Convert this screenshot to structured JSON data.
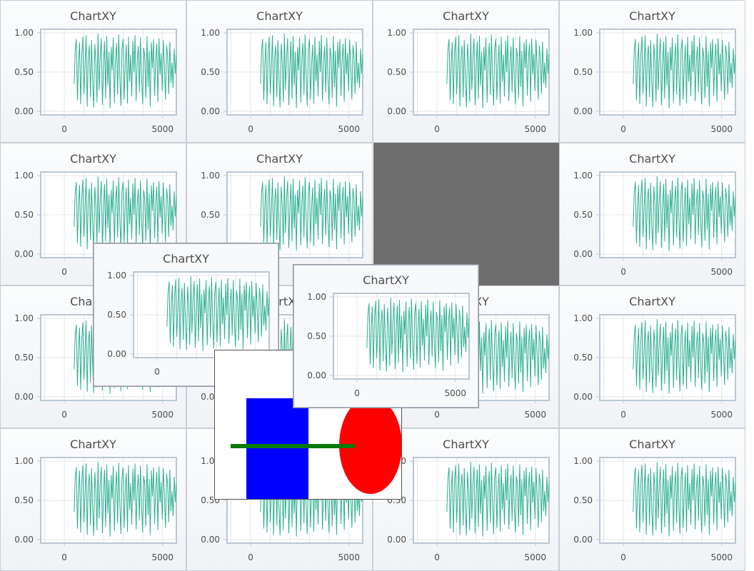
{
  "chart_title": "ChartXY",
  "colors": {
    "series": "#2db08f",
    "frame": "#b9c7d4",
    "panel_bg": "#f3f6f8",
    "gray_area": "#6e6e6e",
    "rect_fill": "#0000ff",
    "ellipse_fill": "#ff0000",
    "line_stroke": "#0a7a0a"
  },
  "chart_data": {
    "type": "line",
    "title": "ChartXY",
    "xlabel": "",
    "ylabel": "",
    "ylim": [
      0,
      1
    ],
    "xlim": [
      -1200,
      5700
    ],
    "y_ticks": [
      "1.00",
      "0.50",
      "0.00"
    ],
    "y_tick_values": [
      1.0,
      0.5,
      0.0
    ],
    "x_ticks": [
      "0",
      "5000"
    ],
    "x_tick_values": [
      0,
      5000
    ],
    "grid": true,
    "series": [
      {
        "x_range": [
          500,
          5700
        ],
        "values": [
          0.35,
          0.78,
          0.92,
          0.14,
          0.61,
          0.88,
          0.09,
          0.73,
          0.95,
          0.22,
          0.55,
          0.97,
          0.06,
          0.68,
          0.84,
          0.18,
          0.91,
          0.41,
          0.05,
          0.86,
          0.63,
          0.12,
          0.99,
          0.27,
          0.71,
          0.93,
          0.08,
          0.58,
          0.89,
          0.16,
          0.96,
          0.33,
          0.76,
          0.04,
          0.82,
          0.52,
          0.94,
          0.11,
          0.66,
          0.87,
          0.21,
          0.98,
          0.45,
          0.07,
          0.79,
          0.92,
          0.15,
          0.6,
          0.85,
          0.1,
          0.95,
          0.38,
          0.72,
          0.19,
          0.9,
          0.5,
          0.97,
          0.13,
          0.64,
          0.83,
          0.24,
          0.94,
          0.42,
          0.09,
          0.81,
          0.69,
          0.17,
          0.96,
          0.31,
          0.77,
          0.06,
          0.88,
          0.55,
          0.92,
          0.2,
          0.67,
          0.86,
          0.12,
          0.93,
          0.47,
          0.74,
          0.26,
          0.91,
          0.58,
          0.15,
          0.84,
          0.7,
          0.22,
          0.89,
          0.36,
          0.62,
          0.3,
          0.8,
          0.48,
          0.73
        ]
      }
    ]
  },
  "charts": [
    {
      "id": "r1c1"
    },
    {
      "id": "r1c2"
    },
    {
      "id": "r1c3"
    },
    {
      "id": "r1c4"
    },
    {
      "id": "r2c1"
    },
    {
      "id": "r2c2"
    },
    {
      "id": "r2c4"
    },
    {
      "id": "r3c1"
    },
    {
      "id": "r3c2"
    },
    {
      "id": "r3c3"
    },
    {
      "id": "r3c4"
    },
    {
      "id": "r4c1"
    },
    {
      "id": "r4c2"
    },
    {
      "id": "r4c3"
    },
    {
      "id": "r4c4"
    },
    {
      "id": "float-a"
    },
    {
      "id": "float-b"
    }
  ]
}
